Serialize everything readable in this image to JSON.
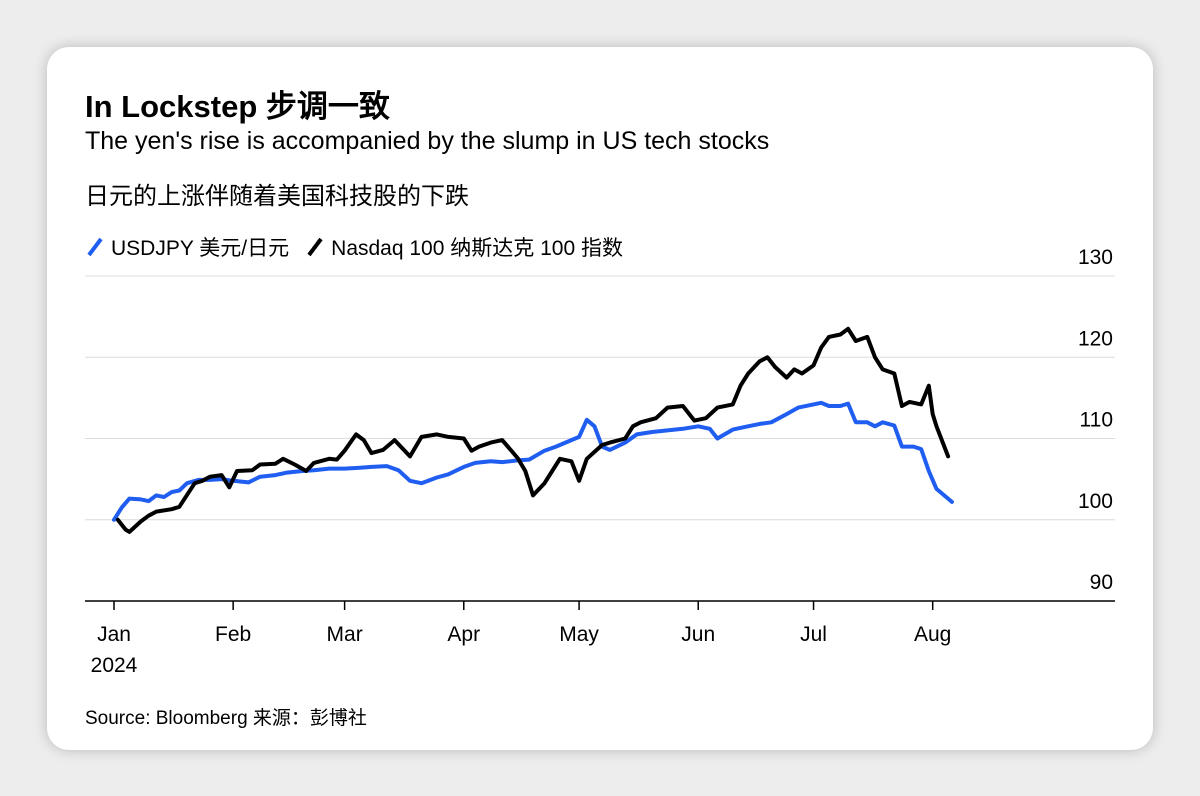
{
  "header": {
    "title": "In Lockstep 步调一致",
    "subtitle_en": "The yen's rise is accompanied by the slump in US tech stocks",
    "subtitle_zh": "日元的上涨伴随着美国科技股的下跌"
  },
  "legend": {
    "items": [
      {
        "label": "USDJPY 美元/日元",
        "color": "#1f5ef0"
      },
      {
        "label": "Nasdaq 100 纳斯达克 100 指数",
        "color": "#000000"
      }
    ]
  },
  "footer": {
    "source": "Source: Bloomberg 来源：彭博社"
  },
  "chart_data": {
    "type": "line",
    "x_type": "date",
    "xlim": [
      "2024-01-01",
      "2024-08-31"
    ],
    "ylim": [
      90,
      130
    ],
    "y_ticks": [
      "130",
      "120",
      "110",
      "100",
      "90"
    ],
    "x_ticks": [
      {
        "date": "2024-01-01",
        "label": "Jan",
        "sublabel": "2024"
      },
      {
        "date": "2024-02-01",
        "label": "Feb"
      },
      {
        "date": "2024-03-01",
        "label": "Mar"
      },
      {
        "date": "2024-04-01",
        "label": "Apr"
      },
      {
        "date": "2024-05-01",
        "label": "May"
      },
      {
        "date": "2024-06-01",
        "label": "Jun"
      },
      {
        "date": "2024-07-01",
        "label": "Jul"
      },
      {
        "date": "2024-08-01",
        "label": "Aug"
      }
    ],
    "grid": true,
    "legend_position": "top-left",
    "series": [
      {
        "name": "USDJPY 美元/日元",
        "color": "#1f5ef0",
        "points": [
          [
            "2024-01-01",
            100.0
          ],
          [
            "2024-01-03",
            101.5
          ],
          [
            "2024-01-05",
            102.6
          ],
          [
            "2024-01-08",
            102.5
          ],
          [
            "2024-01-10",
            102.3
          ],
          [
            "2024-01-12",
            103.0
          ],
          [
            "2024-01-14",
            102.8
          ],
          [
            "2024-01-16",
            103.4
          ],
          [
            "2024-01-18",
            103.6
          ],
          [
            "2024-01-20",
            104.5
          ],
          [
            "2024-01-23",
            104.9
          ],
          [
            "2024-01-26",
            104.9
          ],
          [
            "2024-01-29",
            105.0
          ],
          [
            "2024-02-01",
            104.8
          ],
          [
            "2024-02-05",
            104.6
          ],
          [
            "2024-02-08",
            105.3
          ],
          [
            "2024-02-12",
            105.5
          ],
          [
            "2024-02-15",
            105.8
          ],
          [
            "2024-02-19",
            106.0
          ],
          [
            "2024-02-22",
            106.1
          ],
          [
            "2024-02-26",
            106.3
          ],
          [
            "2024-03-01",
            106.3
          ],
          [
            "2024-03-05",
            106.4
          ],
          [
            "2024-03-08",
            106.5
          ],
          [
            "2024-03-12",
            106.6
          ],
          [
            "2024-03-15",
            106.1
          ],
          [
            "2024-03-18",
            104.8
          ],
          [
            "2024-03-21",
            104.5
          ],
          [
            "2024-03-25",
            105.2
          ],
          [
            "2024-03-28",
            105.6
          ],
          [
            "2024-04-01",
            106.5
          ],
          [
            "2024-04-04",
            107.0
          ],
          [
            "2024-04-08",
            107.2
          ],
          [
            "2024-04-11",
            107.1
          ],
          [
            "2024-04-15",
            107.3
          ],
          [
            "2024-04-18",
            107.4
          ],
          [
            "2024-04-22",
            108.5
          ],
          [
            "2024-04-25",
            109.0
          ],
          [
            "2024-04-29",
            109.8
          ],
          [
            "2024-05-01",
            110.2
          ],
          [
            "2024-05-03",
            112.3
          ],
          [
            "2024-05-05",
            111.5
          ],
          [
            "2024-05-07",
            109.0
          ],
          [
            "2024-05-09",
            108.6
          ],
          [
            "2024-05-13",
            109.5
          ],
          [
            "2024-05-16",
            110.5
          ],
          [
            "2024-05-20",
            110.8
          ],
          [
            "2024-05-24",
            111.0
          ],
          [
            "2024-05-28",
            111.2
          ],
          [
            "2024-06-01",
            111.5
          ],
          [
            "2024-06-04",
            111.2
          ],
          [
            "2024-06-06",
            110.0
          ],
          [
            "2024-06-10",
            111.1
          ],
          [
            "2024-06-13",
            111.4
          ],
          [
            "2024-06-17",
            111.8
          ],
          [
            "2024-06-20",
            112.0
          ],
          [
            "2024-06-24",
            113.0
          ],
          [
            "2024-06-27",
            113.8
          ],
          [
            "2024-07-01",
            114.2
          ],
          [
            "2024-07-03",
            114.4
          ],
          [
            "2024-07-05",
            114.0
          ],
          [
            "2024-07-08",
            114.0
          ],
          [
            "2024-07-10",
            114.3
          ],
          [
            "2024-07-12",
            112.0
          ],
          [
            "2024-07-15",
            112.0
          ],
          [
            "2024-07-17",
            111.5
          ],
          [
            "2024-07-19",
            112.0
          ],
          [
            "2024-07-22",
            111.6
          ],
          [
            "2024-07-24",
            109.0
          ],
          [
            "2024-07-27",
            109.0
          ],
          [
            "2024-07-29",
            108.7
          ],
          [
            "2024-07-31",
            106.0
          ],
          [
            "2024-08-02",
            103.8
          ],
          [
            "2024-08-04",
            103.0
          ],
          [
            "2024-08-06",
            102.2
          ]
        ]
      },
      {
        "name": "Nasdaq 100 纳斯达克 100 指数",
        "color": "#000000",
        "points": [
          [
            "2024-01-02",
            100.0
          ],
          [
            "2024-01-04",
            98.8
          ],
          [
            "2024-01-05",
            98.5
          ],
          [
            "2024-01-08",
            99.8
          ],
          [
            "2024-01-10",
            100.5
          ],
          [
            "2024-01-12",
            101.0
          ],
          [
            "2024-01-16",
            101.3
          ],
          [
            "2024-01-18",
            101.6
          ],
          [
            "2024-01-22",
            104.5
          ],
          [
            "2024-01-24",
            104.8
          ],
          [
            "2024-01-26",
            105.3
          ],
          [
            "2024-01-29",
            105.5
          ],
          [
            "2024-01-31",
            104.0
          ],
          [
            "2024-02-02",
            106.0
          ],
          [
            "2024-02-06",
            106.1
          ],
          [
            "2024-02-08",
            106.8
          ],
          [
            "2024-02-12",
            106.9
          ],
          [
            "2024-02-14",
            107.5
          ],
          [
            "2024-02-17",
            106.8
          ],
          [
            "2024-02-20",
            106.0
          ],
          [
            "2024-02-22",
            107.0
          ],
          [
            "2024-02-26",
            107.5
          ],
          [
            "2024-02-28",
            107.4
          ],
          [
            "2024-03-01",
            108.5
          ],
          [
            "2024-03-04",
            110.5
          ],
          [
            "2024-03-06",
            109.8
          ],
          [
            "2024-03-08",
            108.2
          ],
          [
            "2024-03-11",
            108.6
          ],
          [
            "2024-03-14",
            109.8
          ],
          [
            "2024-03-18",
            107.8
          ],
          [
            "2024-03-21",
            110.2
          ],
          [
            "2024-03-25",
            110.5
          ],
          [
            "2024-03-28",
            110.2
          ],
          [
            "2024-04-01",
            110.0
          ],
          [
            "2024-04-03",
            108.5
          ],
          [
            "2024-04-05",
            109.0
          ],
          [
            "2024-04-08",
            109.5
          ],
          [
            "2024-04-11",
            109.8
          ],
          [
            "2024-04-15",
            107.6
          ],
          [
            "2024-04-17",
            106.0
          ],
          [
            "2024-04-19",
            103.0
          ],
          [
            "2024-04-22",
            104.5
          ],
          [
            "2024-04-24",
            106.0
          ],
          [
            "2024-04-26",
            107.5
          ],
          [
            "2024-04-29",
            107.2
          ],
          [
            "2024-05-01",
            104.8
          ],
          [
            "2024-05-03",
            107.5
          ],
          [
            "2024-05-07",
            109.2
          ],
          [
            "2024-05-09",
            109.5
          ],
          [
            "2024-05-13",
            110.0
          ],
          [
            "2024-05-15",
            111.5
          ],
          [
            "2024-05-17",
            112.0
          ],
          [
            "2024-05-21",
            112.5
          ],
          [
            "2024-05-24",
            113.8
          ],
          [
            "2024-05-28",
            114.0
          ],
          [
            "2024-05-31",
            112.2
          ],
          [
            "2024-06-03",
            112.5
          ],
          [
            "2024-06-06",
            113.8
          ],
          [
            "2024-06-10",
            114.2
          ],
          [
            "2024-06-12",
            116.5
          ],
          [
            "2024-06-14",
            118.0
          ],
          [
            "2024-06-17",
            119.5
          ],
          [
            "2024-06-19",
            120.0
          ],
          [
            "2024-06-21",
            118.8
          ],
          [
            "2024-06-24",
            117.5
          ],
          [
            "2024-06-26",
            118.5
          ],
          [
            "2024-06-28",
            118.0
          ],
          [
            "2024-07-01",
            119.0
          ],
          [
            "2024-07-03",
            121.2
          ],
          [
            "2024-07-05",
            122.5
          ],
          [
            "2024-07-08",
            122.8
          ],
          [
            "2024-07-10",
            123.5
          ],
          [
            "2024-07-12",
            122.0
          ],
          [
            "2024-07-15",
            122.5
          ],
          [
            "2024-07-17",
            120.0
          ],
          [
            "2024-07-19",
            118.5
          ],
          [
            "2024-07-22",
            118.0
          ],
          [
            "2024-07-24",
            114.0
          ],
          [
            "2024-07-26",
            114.5
          ],
          [
            "2024-07-29",
            114.2
          ],
          [
            "2024-07-31",
            116.5
          ],
          [
            "2024-08-01",
            113.0
          ],
          [
            "2024-08-02",
            111.5
          ],
          [
            "2024-08-05",
            107.8
          ]
        ]
      }
    ]
  }
}
